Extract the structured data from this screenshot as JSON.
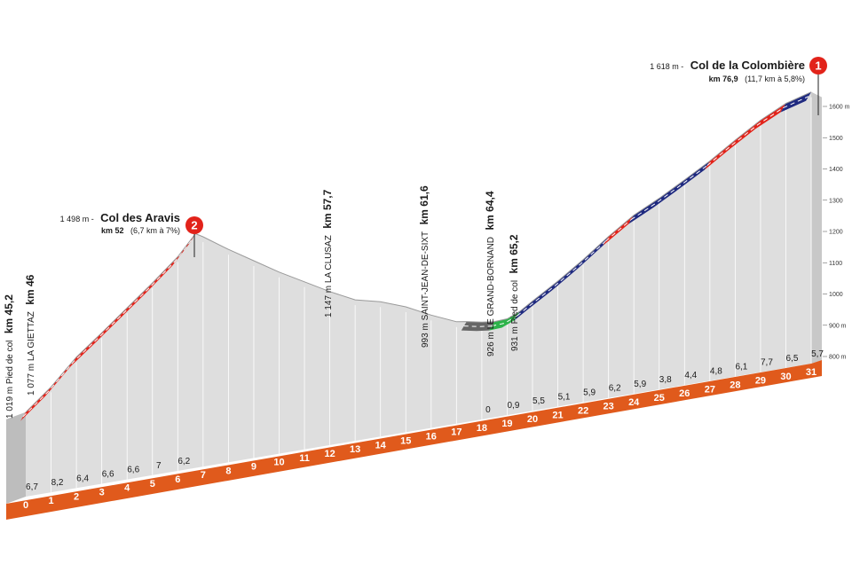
{
  "chart_data": {
    "type": "area",
    "title": "",
    "xlabel": "",
    "ylabel": "",
    "x_ticks": [
      "0",
      "1",
      "2",
      "3",
      "4",
      "5",
      "6",
      "7",
      "8",
      "9",
      "10",
      "11",
      "12",
      "13",
      "14",
      "15",
      "16",
      "17",
      "18",
      "19",
      "20",
      "21",
      "22",
      "23",
      "24",
      "25",
      "26",
      "27",
      "28",
      "29",
      "30",
      "31"
    ],
    "y_ticks": [
      "800 m",
      "900 m",
      "1000",
      "1100",
      "1200",
      "1300",
      "1400",
      "1500",
      "1600 m"
    ],
    "profile": {
      "x": [
        0,
        1,
        2,
        3,
        4,
        5,
        6,
        6.7,
        7,
        8,
        9,
        10,
        11,
        12,
        13,
        14,
        15,
        16,
        17,
        17.4,
        18,
        18.5,
        19,
        19.5,
        20,
        21,
        22,
        23,
        24,
        25,
        26,
        27,
        28,
        29,
        30,
        31
      ],
      "y": [
        1019,
        1086,
        1168,
        1232,
        1298,
        1364,
        1434,
        1498,
        1484,
        1430,
        1380,
        1330,
        1285,
        1240,
        1200,
        1180,
        1150,
        1110,
        1075,
        1070,
        1060,
        1055,
        1057,
        1074,
        1100,
        1150,
        1205,
        1265,
        1320,
        1360,
        1405,
        1452,
        1505,
        1555,
        1595,
        1618
      ]
    },
    "gradients": [
      {
        "km": "0",
        "value": "6,7"
      },
      {
        "km": "1",
        "value": "8,2"
      },
      {
        "km": "2",
        "value": "6,4"
      },
      {
        "km": "3",
        "value": "6,6"
      },
      {
        "km": "4",
        "value": "6,6"
      },
      {
        "km": "5",
        "value": "7"
      },
      {
        "km": "6",
        "value": "6,2"
      },
      {
        "km": "18",
        "value": "0"
      },
      {
        "km": "19",
        "value": "0,9"
      },
      {
        "km": "20",
        "value": "5,5"
      },
      {
        "km": "21",
        "value": "5,1"
      },
      {
        "km": "22",
        "value": "5,9"
      },
      {
        "km": "23",
        "value": "6,2"
      },
      {
        "km": "24",
        "value": "5,9"
      },
      {
        "km": "25",
        "value": "3,8"
      },
      {
        "km": "26",
        "value": "4,4"
      },
      {
        "km": "27",
        "value": "4,8"
      },
      {
        "km": "28",
        "value": "6,1"
      },
      {
        "km": "29",
        "value": "7,7"
      },
      {
        "km": "30",
        "value": "6,5"
      },
      {
        "km": "31",
        "value": "5,7"
      }
    ],
    "segment_colors": [
      {
        "from": 0,
        "to": 6.7,
        "color": "#e2231a"
      },
      {
        "from": 17.4,
        "to": 18.5,
        "color": "#666666"
      },
      {
        "from": 18.5,
        "to": 19.5,
        "color": "#2db34a"
      },
      {
        "from": 19.5,
        "to": 23,
        "color": "#1f2a80"
      },
      {
        "from": 23,
        "to": 24,
        "color": "#e2231a"
      },
      {
        "from": 24,
        "to": 27,
        "color": "#1f2a80"
      },
      {
        "from": 27,
        "to": 30,
        "color": "#e2231a"
      },
      {
        "from": 30,
        "to": 31,
        "color": "#1f2a80"
      }
    ],
    "colors": {
      "fill": "#dedede",
      "fill_top": "#eeeeee",
      "base_band": "#e05a1c",
      "grid": "#bdbdbd",
      "marker": "#e2231a"
    }
  },
  "passes": [
    {
      "number": "1",
      "altitude": "1 618 m -",
      "name": "Col de la Colombière",
      "km_label": "km 76,9",
      "detail": "(11,7 km à 5,8%)"
    },
    {
      "number": "2",
      "altitude": "1 498 m -",
      "name": "Col des Aravis",
      "km_label": "km 52",
      "detail": "(6,7 km à 7%)"
    }
  ],
  "locations": [
    {
      "text": "1 019 m  Pied de col",
      "km": "km 45,2"
    },
    {
      "text": "1 077 m  LA GIETTAZ",
      "km": "km 46"
    },
    {
      "text": "1 147 m  LA CLUSAZ",
      "km": "km 57,7"
    },
    {
      "text": "993 m  SAINT-JEAN-DE-SIXT",
      "km": "km 61,6"
    },
    {
      "text": "926 m  LE GRAND-BORNAND",
      "km": "km 64,4"
    },
    {
      "text": "931 m  Pied de col",
      "km": "km 65,2"
    }
  ]
}
